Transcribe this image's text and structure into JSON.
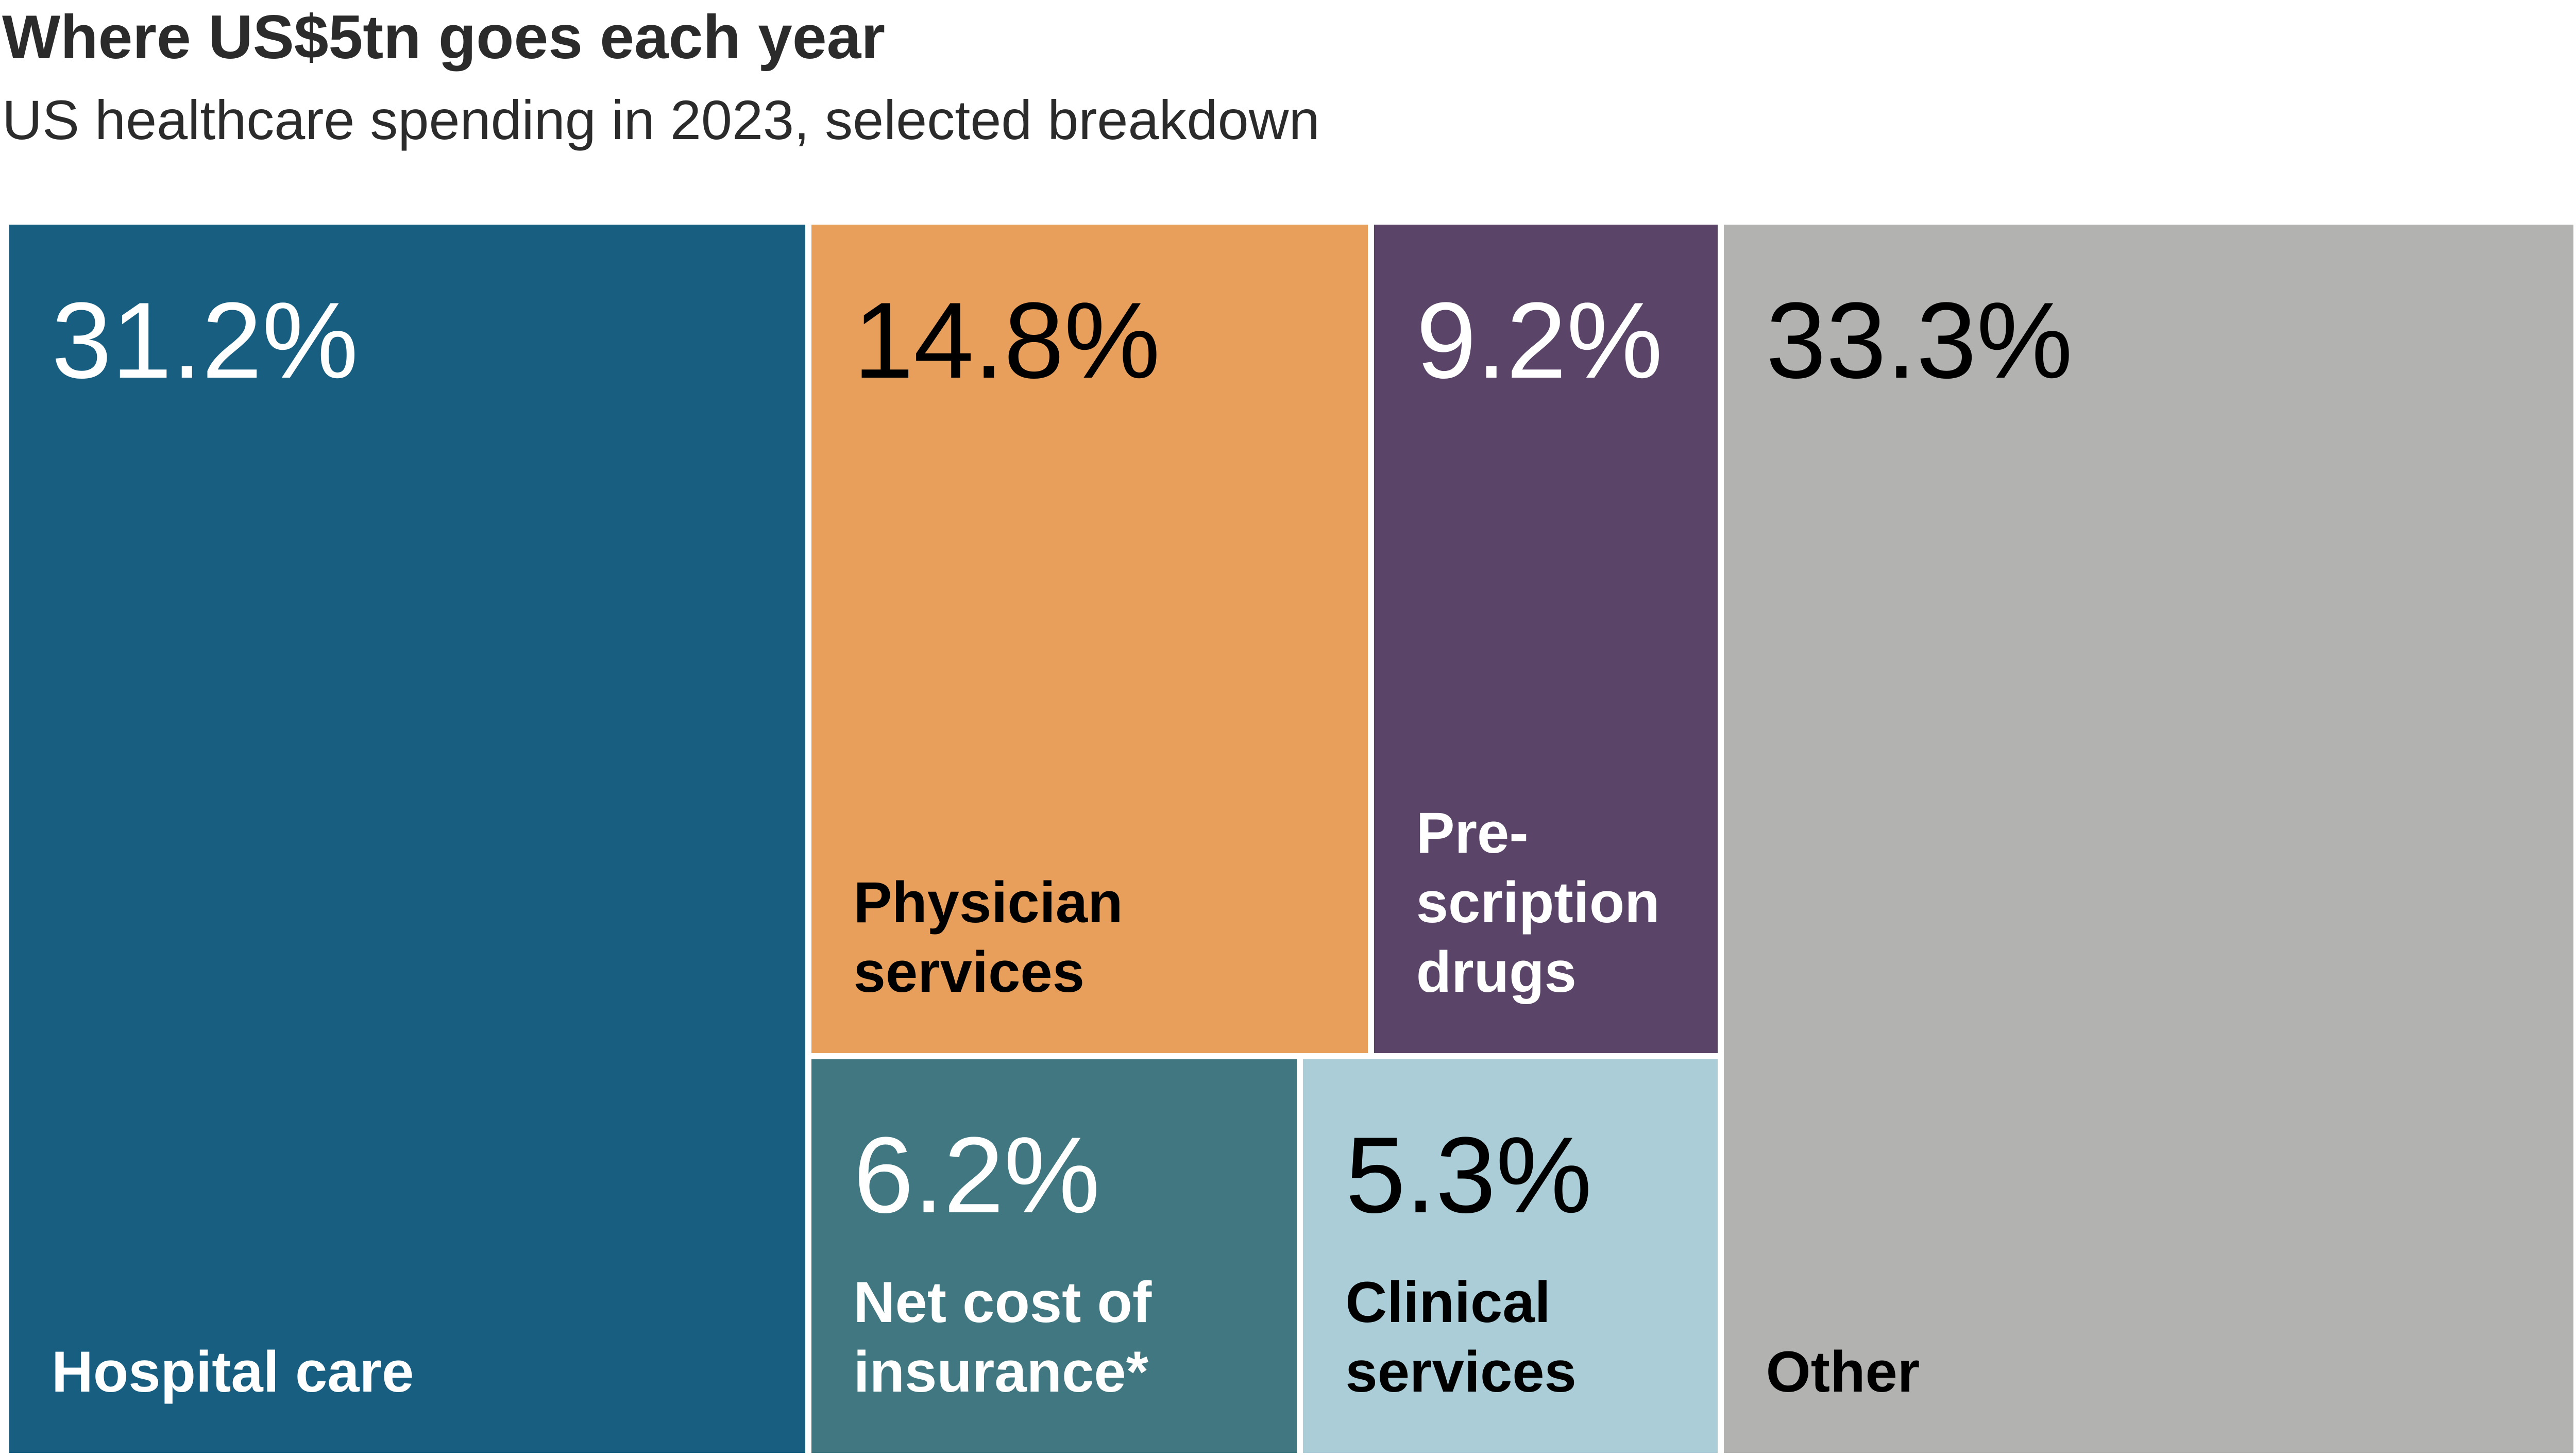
{
  "title": "Where US$5tn goes each year",
  "subtitle": "US healthcare spending in 2023, selected breakdown",
  "chart_data": {
    "type": "treemap",
    "title": "Where US$5tn goes each year",
    "subtitle": "US healthcare spending in 2023, selected breakdown",
    "unit": "%",
    "items": [
      {
        "id": "hospital",
        "label": "Hospital care",
        "value": 31.2,
        "value_label": "31.2%",
        "color": "#175e80",
        "text_color": "#ffffff"
      },
      {
        "id": "physician",
        "label": "Physician\nservices",
        "value": 14.8,
        "value_label": "14.8%",
        "color": "#e89f5c",
        "text_color": "#000000"
      },
      {
        "id": "rx",
        "label": "Pre-\nscription\ndrugs",
        "value": 9.2,
        "value_label": "9.2%",
        "color": "#5a4569",
        "text_color": "#ffffff"
      },
      {
        "id": "insurance",
        "label": "Net cost of\ninsurance*",
        "value": 6.2,
        "value_label": "6.2%",
        "color": "#417780",
        "text_color": "#ffffff"
      },
      {
        "id": "clinical",
        "label": "Clinical\nservices",
        "value": 5.3,
        "value_label": "5.3%",
        "color": "#aacdd7",
        "text_color": "#000000"
      },
      {
        "id": "other",
        "label": "Other",
        "value": 33.3,
        "value_label": "33.3%",
        "color": "#b2b2b1",
        "text_color": "#000000"
      }
    ]
  }
}
